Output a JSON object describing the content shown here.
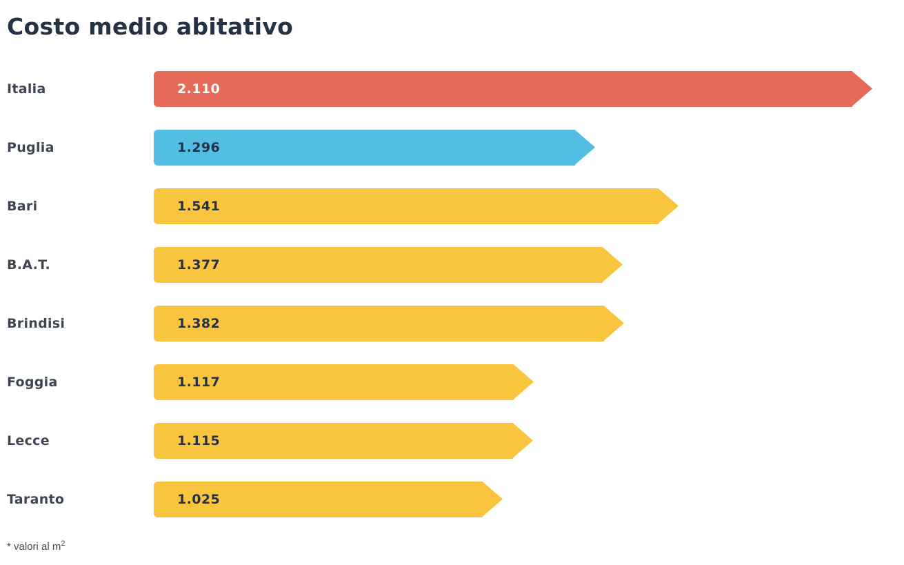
{
  "title": "Costo medio abitativo",
  "footnote": {
    "text": "* valori al m",
    "superscript": "2"
  },
  "colors": {
    "red": "#e7695a",
    "blue": "#51bee2",
    "yellow": "#fac53e",
    "navy": "#253246",
    "white": "#ffffff",
    "label_gray": "#3d4552"
  },
  "chart_data": {
    "type": "bar",
    "orientation": "horizontal",
    "title": "Costo medio abitativo",
    "unit_note": "* valori al m2",
    "categories": [
      "Italia",
      "Puglia",
      "Bari",
      "B.A.T.",
      "Brindisi",
      "Foggia",
      "Lecce",
      "Taranto"
    ],
    "values": [
      2110,
      1296,
      1541,
      1377,
      1382,
      1117,
      1115,
      1025
    ],
    "value_labels": [
      "2.110",
      "1.296",
      "1.541",
      "1.377",
      "1.382",
      "1.117",
      "1.115",
      "1.025"
    ],
    "bar_colors": [
      "#e7695a",
      "#51bee2",
      "#fac53e",
      "#fac53e",
      "#fac53e",
      "#fac53e",
      "#fac53e",
      "#fac53e"
    ],
    "value_label_colors": [
      "#ffffff",
      "#253246",
      "#253246",
      "#253246",
      "#253246",
      "#253246",
      "#253246",
      "#253246"
    ],
    "xlim": [
      0,
      2200
    ],
    "grid": false,
    "legend": false
  }
}
